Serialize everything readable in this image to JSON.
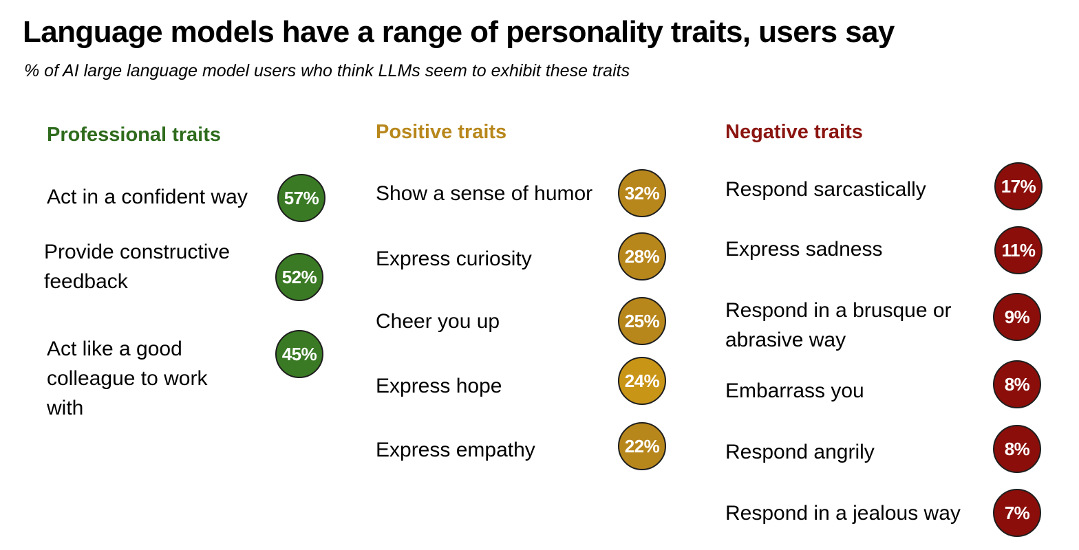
{
  "title": "Language models have a range of personality traits, users say",
  "subtitle": "% of AI large language model users who think LLMs seem to exhibit these traits",
  "colors": {
    "professional": "#3a7a24",
    "positive": "#b8871c",
    "negative": "#8b0e0a"
  },
  "groups": [
    {
      "title": "Professional traits",
      "items": [
        {
          "label": "Act in a confident way",
          "value_label": "57%"
        },
        {
          "label": "Provide constructive feedback",
          "value_label": "52%"
        },
        {
          "label": "Act like a good colleague to work with",
          "value_label": "45%"
        }
      ]
    },
    {
      "title": "Positive traits",
      "items": [
        {
          "label": "Show a sense of humor",
          "value_label": "32%"
        },
        {
          "label": "Express curiosity",
          "value_label": "28%"
        },
        {
          "label": "Cheer you up",
          "value_label": "25%"
        },
        {
          "label": "Express hope",
          "value_label": "24%"
        },
        {
          "label": "Express empathy",
          "value_label": "22%"
        }
      ]
    },
    {
      "title": "Negative traits",
      "items": [
        {
          "label": "Respond sarcastically",
          "value_label": "17%"
        },
        {
          "label": "Express sadness",
          "value_label": "11%"
        },
        {
          "label": "Respond in a brusque or abrasive way",
          "value_label": "9%"
        },
        {
          "label": "Embarrass you",
          "value_label": "8%"
        },
        {
          "label": "Respond angrily",
          "value_label": "8%"
        },
        {
          "label": "Respond in a jealous way",
          "value_label": "7%"
        }
      ]
    }
  ],
  "chart_data": {
    "type": "table",
    "title": "Language models have a range of personality traits, users say",
    "subtitle": "% of AI large language model users who think LLMs seem to exhibit these traits",
    "unit": "%",
    "series": [
      {
        "name": "Professional traits",
        "categories": [
          "Act in a confident way",
          "Provide constructive feedback",
          "Act like a good colleague to work with"
        ],
        "values": [
          57,
          52,
          45
        ]
      },
      {
        "name": "Positive traits",
        "categories": [
          "Show a sense of humor",
          "Express curiosity",
          "Cheer you up",
          "Express hope",
          "Express empathy"
        ],
        "values": [
          32,
          28,
          25,
          24,
          22
        ]
      },
      {
        "name": "Negative traits",
        "categories": [
          "Respond sarcastically",
          "Express sadness",
          "Respond in a brusque or abrasive way",
          "Embarrass you",
          "Respond angrily",
          "Respond in a jealous way"
        ],
        "values": [
          17,
          11,
          9,
          8,
          8,
          7
        ]
      }
    ]
  }
}
